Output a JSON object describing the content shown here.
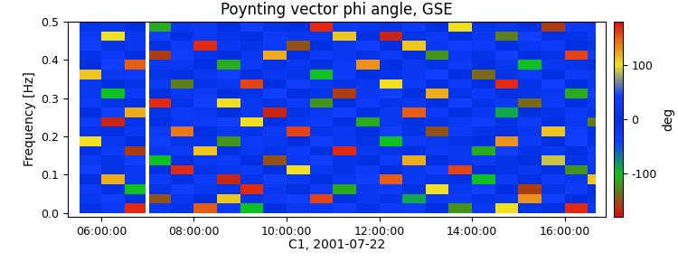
{
  "chart_data": {
    "type": "heatmap",
    "title": "Poynting vector phi angle, GSE",
    "x_label": "C1, 2001-07-22",
    "y_label": "Frequency [Hz]",
    "xlim": [
      5.28,
      16.88
    ],
    "xticks": [
      {
        "value": 6,
        "label": "06:00:00"
      },
      {
        "value": 8,
        "label": "08:00:00"
      },
      {
        "value": 10,
        "label": "10:00:00"
      },
      {
        "value": 12,
        "label": "12:00:00"
      },
      {
        "value": 14,
        "label": "14:00:00"
      },
      {
        "value": 16,
        "label": "16:00:00"
      }
    ],
    "ylim": [
      -0.01,
      0.5
    ],
    "yticks": [
      {
        "value": 0,
        "label": "0.0"
      },
      0.1,
      0.2,
      0.3,
      0.4,
      0.5
    ],
    "x_edges": [
      5.53,
      6.0,
      6.5,
      6.95,
      7.03,
      7.5,
      8.0,
      8.5,
      9.0,
      9.5,
      10.0,
      10.5,
      11.0,
      11.5,
      12.0,
      12.5,
      13.0,
      13.5,
      14.0,
      14.5,
      15.0,
      15.5,
      16.0,
      16.5,
      16.68
    ],
    "y_edges": [
      0.0,
      0.025,
      0.05,
      0.075,
      0.1,
      0.125,
      0.15,
      0.175,
      0.2,
      0.225,
      0.25,
      0.275,
      0.3,
      0.325,
      0.35,
      0.375,
      0.4,
      0.425,
      0.45,
      0.475,
      0.5
    ],
    "cells": [
      [
        10,
        -30,
        170,
        null,
        20,
        -10,
        150,
        30,
        -100,
        0,
        20,
        -20,
        40,
        10,
        -30,
        30,
        0,
        -120,
        20,
        100,
        -10,
        0,
        170,
        20
      ],
      [
        -20,
        40,
        0,
        null,
        -150,
        20,
        0,
        110,
        -10,
        30,
        -40,
        160,
        0,
        -20,
        10,
        -90,
        20,
        30,
        -10,
        -20,
        130,
        40,
        0,
        -10
      ],
      [
        30,
        0,
        -100,
        null,
        10,
        -40,
        20,
        -10,
        170,
        -20,
        0,
        30,
        -110,
        20,
        -30,
        0,
        100,
        -20,
        40,
        0,
        -160,
        10,
        30,
        0
      ],
      [
        0,
        120,
        20,
        null,
        30,
        0,
        -30,
        -170,
        10,
        40,
        -20,
        0,
        20,
        -40,
        150,
        20,
        -10,
        0,
        -100,
        30,
        0,
        -30,
        -20,
        110
      ],
      [
        -40,
        10,
        -20,
        null,
        0,
        170,
        10,
        20,
        -30,
        0,
        100,
        -20,
        -10,
        30,
        0,
        -20,
        40,
        160,
        0,
        -10,
        20,
        0,
        -120,
        20
      ],
      [
        20,
        -10,
        40,
        null,
        -100,
        0,
        -20,
        30,
        0,
        -150,
        20,
        40,
        10,
        0,
        -30,
        120,
        0,
        -20,
        30,
        -10,
        0,
        90,
        10,
        -30
      ],
      [
        0,
        30,
        -160,
        null,
        20,
        -30,
        110,
        0,
        20,
        -10,
        -30,
        0,
        170,
        -20,
        10,
        0,
        -30,
        20,
        -110,
        40,
        10,
        -20,
        0,
        30
      ],
      [
        100,
        -20,
        0,
        null,
        40,
        10,
        -10,
        -120,
        30,
        20,
        0,
        -40,
        20,
        10,
        -100,
        30,
        20,
        -10,
        0,
        130,
        -30,
        0,
        40,
        -10
      ],
      [
        -10,
        0,
        20,
        null,
        -30,
        140,
        0,
        20,
        -10,
        -30,
        160,
        10,
        -20,
        0,
        40,
        -10,
        -150,
        30,
        10,
        0,
        -20,
        110,
        -40,
        0
      ],
      [
        30,
        -170,
        -10,
        null,
        0,
        -20,
        30,
        -40,
        100,
        0,
        20,
        -30,
        0,
        -110,
        20,
        0,
        10,
        -20,
        40,
        -10,
        30,
        0,
        20,
        -130
      ],
      [
        0,
        40,
        120,
        null,
        -10,
        30,
        -20,
        0,
        20,
        -170,
        -10,
        20,
        40,
        0,
        -20,
        150,
        -30,
        0,
        20,
        -90,
        0,
        -10,
        30,
        10
      ],
      [
        -30,
        10,
        0,
        null,
        170,
        -10,
        40,
        100,
        -20,
        10,
        30,
        -120,
        0,
        30,
        10,
        -20,
        0,
        40,
        -10,
        20,
        -140,
        30,
        0,
        -20
      ],
      [
        20,
        -100,
        30,
        null,
        0,
        20,
        -30,
        0,
        -10,
        40,
        0,
        10,
        -160,
        20,
        -40,
        0,
        120,
        -10,
        30,
        0,
        10,
        -20,
        -110,
        40
      ],
      [
        -20,
        0,
        -10,
        null,
        30,
        -130,
        10,
        -20,
        160,
        0,
        -40,
        20,
        10,
        -20,
        100,
        30,
        0,
        -30,
        0,
        170,
        -10,
        40,
        0,
        -20
      ],
      [
        110,
        20,
        -30,
        null,
        -10,
        0,
        20,
        40,
        0,
        -20,
        10,
        -100,
        30,
        0,
        -10,
        -20,
        40,
        0,
        -140,
        10,
        30,
        0,
        -30,
        20
      ],
      [
        0,
        -40,
        150,
        null,
        20,
        -20,
        0,
        -110,
        30,
        10,
        -20,
        0,
        -30,
        130,
        0,
        20,
        -10,
        30,
        0,
        -20,
        -100,
        20,
        10,
        0
      ],
      [
        -10,
        30,
        0,
        null,
        -160,
        40,
        -10,
        0,
        -20,
        120,
        0,
        30,
        20,
        -10,
        -30,
        0,
        -120,
        20,
        10,
        40,
        0,
        -10,
        160,
        -30
      ],
      [
        40,
        -10,
        20,
        null,
        0,
        -30,
        170,
        20,
        10,
        -30,
        -150,
        0,
        -20,
        40,
        0,
        110,
        20,
        -40,
        30,
        0,
        -20,
        30,
        0,
        10
      ],
      [
        -30,
        100,
        -20,
        null,
        40,
        0,
        -30,
        -10,
        0,
        30,
        20,
        -20,
        110,
        0,
        -170,
        -10,
        30,
        0,
        -20,
        -130,
        40,
        0,
        -10,
        20
      ],
      [
        10,
        -20,
        0,
        null,
        -110,
        20,
        30,
        0,
        -40,
        -10,
        0,
        170,
        -30,
        20,
        10,
        -30,
        0,
        100,
        -10,
        20,
        0,
        -160,
        30,
        -20
      ]
    ],
    "colorbar_range": [
      -180,
      180
    ],
    "colorbar_ticks": [
      100,
      0,
      -100
    ],
    "colorbar_label": "deg"
  }
}
